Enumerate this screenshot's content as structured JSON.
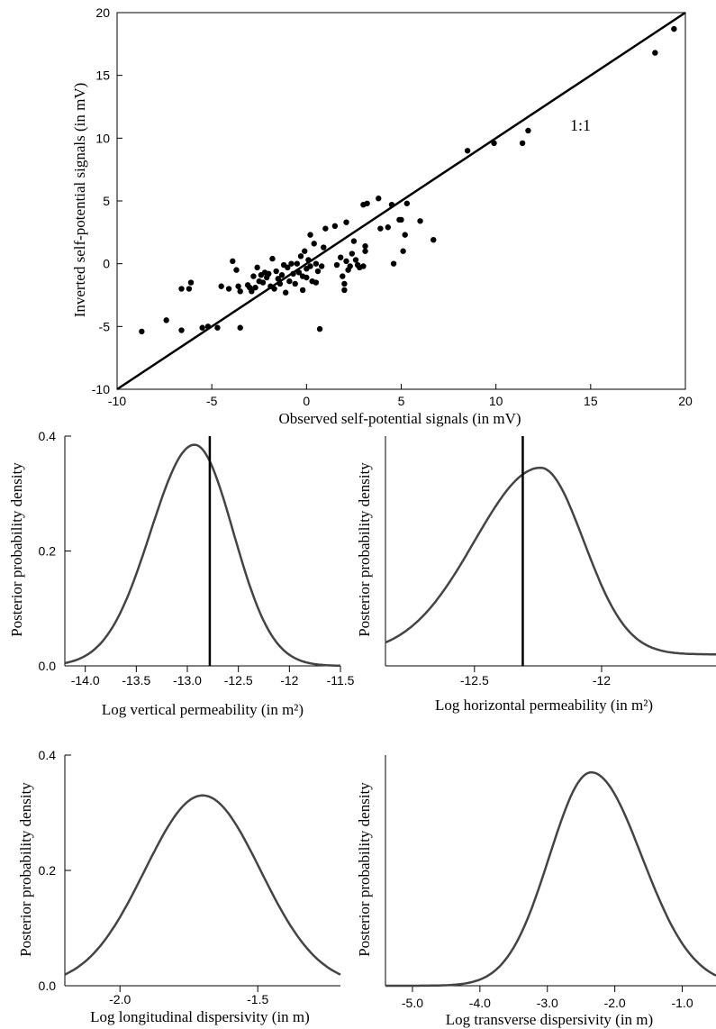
{
  "chart_data": [
    {
      "type": "scatter",
      "xlabel": "Observed self-potential signals (in mV)",
      "ylabel": "Inverted self-potential signals (in mV)",
      "xlim": [
        -10,
        20
      ],
      "ylim": [
        -10,
        20
      ],
      "xticks": [
        -10,
        -5,
        0,
        5,
        10,
        15,
        20
      ],
      "yticks": [
        -10,
        -5,
        0,
        5,
        10,
        15,
        20
      ],
      "xtick_labels": [
        "-10",
        "-5",
        "0",
        "5",
        "10",
        "15",
        "20"
      ],
      "ytick_labels": [
        "-10",
        "-5",
        "0",
        "5",
        "10",
        "15",
        "20"
      ],
      "reference_line": {
        "label": "1:1",
        "slope": 1,
        "intercept": 0
      },
      "points": [
        [
          -8.7,
          -5.4
        ],
        [
          -7.4,
          -4.5
        ],
        [
          -6.6,
          -5.3
        ],
        [
          -6.6,
          -2.0
        ],
        [
          -6.2,
          -2.0
        ],
        [
          -6.1,
          -1.5
        ],
        [
          -5.5,
          -5.1
        ],
        [
          -5.2,
          -5.0
        ],
        [
          -4.7,
          -5.1
        ],
        [
          -4.5,
          -1.8
        ],
        [
          -4.1,
          -2.0
        ],
        [
          -3.9,
          0.2
        ],
        [
          -3.7,
          -0.5
        ],
        [
          -3.6,
          -1.8
        ],
        [
          -3.5,
          -2.2
        ],
        [
          -3.5,
          -5.1
        ],
        [
          -3.1,
          -1.7
        ],
        [
          -3.0,
          -1.9
        ],
        [
          -2.9,
          -2.2
        ],
        [
          -2.8,
          -1.0
        ],
        [
          -2.7,
          -1.9
        ],
        [
          -2.6,
          -0.3
        ],
        [
          -2.5,
          -1.4
        ],
        [
          -2.4,
          -0.9
        ],
        [
          -2.3,
          -1.5
        ],
        [
          -2.2,
          -0.7
        ],
        [
          -2.1,
          -1.1
        ],
        [
          -2.0,
          -0.8
        ],
        [
          -1.9,
          -1.8
        ],
        [
          -1.8,
          0.4
        ],
        [
          -1.7,
          -2.0
        ],
        [
          -1.6,
          -0.6
        ],
        [
          -1.5,
          -1.2
        ],
        [
          -1.4,
          -1.6
        ],
        [
          -1.3,
          -0.9
        ],
        [
          -1.2,
          -0.1
        ],
        [
          -1.1,
          -2.3
        ],
        [
          -1.0,
          -0.3
        ],
        [
          -0.9,
          -1.4
        ],
        [
          -0.8,
          0.0
        ],
        [
          -0.7,
          -0.8
        ],
        [
          -0.6,
          -1.6
        ],
        [
          -0.5,
          0.0
        ],
        [
          -0.4,
          -0.7
        ],
        [
          -0.3,
          0.6
        ],
        [
          -0.2,
          -1.0
        ],
        [
          -0.2,
          -2.1
        ],
        [
          -0.1,
          1.0
        ],
        [
          0.0,
          -0.4
        ],
        [
          0.0,
          -1.1
        ],
        [
          0.1,
          0.3
        ],
        [
          0.2,
          -0.2
        ],
        [
          0.2,
          2.3
        ],
        [
          0.3,
          -1.4
        ],
        [
          0.4,
          1.6
        ],
        [
          0.5,
          0.0
        ],
        [
          0.5,
          -1.5
        ],
        [
          0.6,
          -0.6
        ],
        [
          0.7,
          -5.2
        ],
        [
          0.8,
          -0.2
        ],
        [
          0.9,
          1.3
        ],
        [
          1.0,
          2.8
        ],
        [
          1.5,
          3.0
        ],
        [
          1.6,
          -0.1
        ],
        [
          1.8,
          0.5
        ],
        [
          1.9,
          -1.0
        ],
        [
          2.0,
          -1.6
        ],
        [
          2.0,
          -2.1
        ],
        [
          2.1,
          3.3
        ],
        [
          2.1,
          0.2
        ],
        [
          2.2,
          -0.5
        ],
        [
          2.3,
          -0.2
        ],
        [
          2.4,
          0.8
        ],
        [
          2.5,
          1.8
        ],
        [
          2.6,
          0.3
        ],
        [
          2.7,
          -0.1
        ],
        [
          2.8,
          -0.3
        ],
        [
          3.0,
          -0.2
        ],
        [
          3.0,
          4.7
        ],
        [
          3.1,
          1.4
        ],
        [
          3.1,
          1.0
        ],
        [
          3.2,
          4.8
        ],
        [
          3.8,
          5.2
        ],
        [
          3.9,
          2.8
        ],
        [
          4.3,
          2.9
        ],
        [
          4.5,
          4.7
        ],
        [
          4.6,
          0.0
        ],
        [
          4.9,
          3.5
        ],
        [
          5.0,
          3.5
        ],
        [
          5.1,
          1.0
        ],
        [
          5.2,
          2.3
        ],
        [
          5.3,
          4.8
        ],
        [
          6.0,
          3.4
        ],
        [
          6.7,
          1.9
        ],
        [
          8.5,
          9.0
        ],
        [
          9.9,
          9.6
        ],
        [
          11.4,
          9.6
        ],
        [
          11.7,
          10.6
        ],
        [
          18.4,
          16.8
        ],
        [
          19.4,
          18.7
        ]
      ]
    },
    {
      "type": "line",
      "xlabel": "Log vertical permeability (in m²)",
      "ylabel": "Posterior probability density",
      "xlim": [
        -14.2,
        -11.5
      ],
      "ylim": [
        0,
        0.4
      ],
      "xticks": [
        -14.0,
        -13.5,
        -13.0,
        -12.5,
        -12.0,
        -11.5
      ],
      "yticks": [
        0.0,
        0.2,
        0.4
      ],
      "xtick_labels": [
        "-14.0",
        "-13.5",
        "-13.0",
        "-12.5",
        "-12",
        "-11.5"
      ],
      "ytick_labels": [
        "0.0",
        "0.2",
        "0.4"
      ],
      "vline": -12.78,
      "distribution": {
        "peak_x": -12.93,
        "peak_y": 0.385,
        "sigma_left": 0.43,
        "sigma_right": 0.38,
        "baseline": 0.0
      }
    },
    {
      "type": "line",
      "xlabel": "Log horizontal permeability (in m²)",
      "ylabel": "Posterior probability density",
      "xlim": [
        -12.85,
        -11.55
      ],
      "ylim": [
        0,
        0.4
      ],
      "xticks": [
        -12.5,
        -12.0
      ],
      "yticks": [],
      "xtick_labels": [
        "-12.5",
        "-12"
      ],
      "ytick_labels": [],
      "vline": -12.31,
      "distribution": {
        "peak_x": -12.24,
        "peak_y": 0.345,
        "sigma_left": 0.26,
        "sigma_right": 0.17,
        "baseline": 0.02
      }
    },
    {
      "type": "line",
      "xlabel": "Log longitudinal dispersivity (in m)",
      "ylabel": "Posterior probability density",
      "xlim": [
        -2.2,
        -1.2
      ],
      "ylim": [
        0,
        0.4
      ],
      "xticks": [
        -2.0,
        -1.5
      ],
      "yticks": [
        0.0,
        0.2,
        0.4
      ],
      "xtick_labels": [
        "-2.0",
        "-1.5"
      ],
      "ytick_labels": [
        "0.0",
        "0.2",
        "0.4"
      ],
      "distribution": {
        "peak_x": -1.7,
        "peak_y": 0.33,
        "sigma_left": 0.21,
        "sigma_right": 0.21,
        "baseline": 0.0
      }
    },
    {
      "type": "line",
      "xlabel": "Log transverse dispersivity (in m)",
      "ylabel": "Posterior probability density",
      "xlim": [
        -5.4,
        -0.5
      ],
      "ylim": [
        0,
        0.4
      ],
      "xticks": [
        -5.0,
        -4.0,
        -3.0,
        -2.0,
        -1.0
      ],
      "yticks": [],
      "xtick_labels": [
        "-5.0",
        "-4.0",
        "-3.0",
        "-2.0",
        "-1.0"
      ],
      "ytick_labels": [],
      "distribution": {
        "peak_x": -2.35,
        "peak_y": 0.37,
        "sigma_left": 0.62,
        "sigma_right": 0.75,
        "baseline": 0.0
      }
    }
  ]
}
